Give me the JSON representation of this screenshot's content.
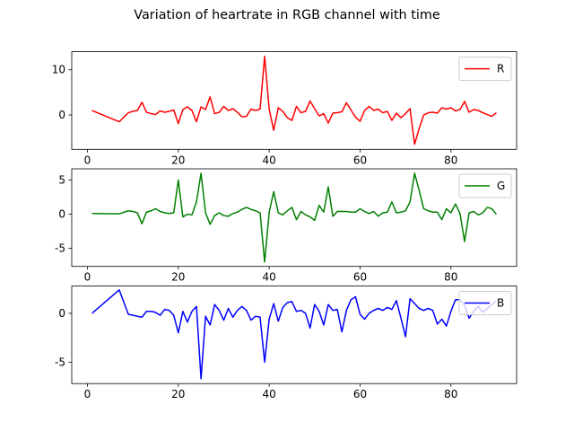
{
  "title": "Variation of heartrate in RGB channel with time",
  "chart_data": [
    {
      "type": "line",
      "legend": "upper right",
      "x": [
        1,
        7,
        9,
        10,
        11,
        12,
        13,
        14,
        15,
        16,
        17,
        18,
        19,
        20,
        21,
        22,
        23,
        24,
        25,
        26,
        27,
        28,
        29,
        30,
        31,
        32,
        33,
        34,
        35,
        36,
        37,
        38,
        39,
        40,
        41,
        42,
        43,
        44,
        45,
        46,
        47,
        48,
        49,
        50,
        51,
        52,
        53,
        54,
        55,
        56,
        57,
        58,
        59,
        60,
        61,
        62,
        63,
        64,
        65,
        66,
        67,
        68,
        69,
        70,
        71,
        72,
        73,
        74,
        75,
        76,
        77,
        78,
        79,
        80,
        81,
        82,
        83,
        84,
        85,
        86,
        87,
        88,
        89,
        90
      ],
      "xlim": [
        -3.45,
        94.45
      ],
      "xticks": [
        0,
        20,
        40,
        60,
        80
      ],
      "ylim": [
        -7.6,
        14.0
      ],
      "yticks": [
        0,
        10
      ],
      "series": [
        {
          "name": "R",
          "color": "#ff0000",
          "values": [
            1,
            -1.5,
            0.5,
            0.8,
            1,
            2.8,
            0.6,
            0.3,
            0.1,
            0.9,
            0.6,
            0.8,
            1.1,
            -1.9,
            1.2,
            1.8,
            1.0,
            -1.5,
            1.8,
            1.2,
            4.0,
            0.3,
            0.6,
            1.9,
            1.0,
            1.4,
            0.6,
            -0.4,
            -0.3,
            1.3,
            1.0,
            1.3,
            13.0,
            1.3,
            -3.4,
            1.6,
            0.8,
            -0.6,
            -1.2,
            1.9,
            0.5,
            0.8,
            3.1,
            1.4,
            -0.2,
            0.3,
            -1.8,
            0.4,
            0.5,
            0.7,
            2.7,
            1.1,
            -0.5,
            -1.4,
            1.0,
            1.9,
            1.0,
            1.3,
            0.5,
            0.8,
            -1.2,
            0.4,
            -0.6,
            0.3,
            1.4,
            -6.5,
            -3.0,
            0,
            0.5,
            0.6,
            0.4,
            1.6,
            1.3,
            1.6,
            0.9,
            1.2,
            3.0,
            0.6,
            1.2,
            1.0,
            0.5,
            0.1,
            -0.3,
            0.5
          ]
        }
      ]
    },
    {
      "type": "line",
      "legend": "upper right",
      "x": [
        1,
        7,
        9,
        10,
        11,
        12,
        13,
        14,
        15,
        16,
        17,
        18,
        19,
        20,
        21,
        22,
        23,
        24,
        25,
        26,
        27,
        28,
        29,
        30,
        31,
        32,
        33,
        34,
        35,
        36,
        37,
        38,
        39,
        40,
        41,
        42,
        43,
        44,
        45,
        46,
        47,
        48,
        49,
        50,
        51,
        52,
        53,
        54,
        55,
        56,
        57,
        58,
        59,
        60,
        61,
        62,
        63,
        64,
        65,
        66,
        67,
        68,
        69,
        70,
        71,
        72,
        73,
        74,
        75,
        76,
        77,
        78,
        79,
        80,
        81,
        82,
        83,
        84,
        85,
        86,
        87,
        88,
        89,
        90
      ],
      "xlim": [
        -3.45,
        94.45
      ],
      "xticks": [
        0,
        20,
        40,
        60,
        80
      ],
      "ylim": [
        -7.65,
        6.65
      ],
      "yticks": [
        -5,
        0,
        5
      ],
      "series": [
        {
          "name": "G",
          "color": "#008000",
          "values": [
            0.1,
            0.05,
            0.5,
            0.4,
            0.2,
            -1.4,
            0.3,
            0.5,
            0.8,
            0.4,
            0.2,
            0.1,
            0.2,
            5.0,
            -0.4,
            0,
            -0.1,
            1.8,
            6.0,
            0.2,
            -1.5,
            -0.2,
            0.2,
            -0.2,
            -0.3,
            0.1,
            0.3,
            0.7,
            1.0,
            0.7,
            0.5,
            0.2,
            -7.0,
            0.3,
            3.3,
            0.2,
            -0.1,
            0.5,
            1.0,
            -0.8,
            0.4,
            -0.1,
            -0.4,
            -0.9,
            1.3,
            0.3,
            4.0,
            -0.3,
            0.4,
            0.4,
            0.4,
            0.3,
            0.3,
            0.8,
            0.4,
            0.1,
            0.4,
            -0.3,
            0.2,
            0.3,
            1.8,
            0.2,
            0.3,
            0.5,
            1.8,
            6.0,
            3.5,
            0.8,
            0.5,
            0.3,
            0.3,
            -0.8,
            0.8,
            0.2,
            1.5,
            0.1,
            -4.0,
            0.2,
            0.4,
            -0.1,
            0.2,
            1.0,
            0.8,
            0.0
          ]
        }
      ]
    },
    {
      "type": "line",
      "legend": "upper right",
      "x": [
        1,
        7,
        9,
        10,
        11,
        12,
        13,
        14,
        15,
        16,
        17,
        18,
        19,
        20,
        21,
        22,
        23,
        24,
        25,
        26,
        27,
        28,
        29,
        30,
        31,
        32,
        33,
        34,
        35,
        36,
        37,
        38,
        39,
        40,
        41,
        42,
        43,
        44,
        45,
        46,
        47,
        48,
        49,
        50,
        51,
        52,
        53,
        54,
        55,
        56,
        57,
        58,
        59,
        60,
        61,
        62,
        63,
        64,
        65,
        66,
        67,
        68,
        69,
        70,
        71,
        72,
        73,
        74,
        75,
        76,
        77,
        78,
        79,
        80,
        81,
        82,
        83,
        84,
        85,
        86,
        87,
        88,
        89,
        90
      ],
      "xlim": [
        -3.45,
        94.45
      ],
      "xticks": [
        0,
        20,
        40,
        60,
        80
      ],
      "ylim": [
        -7.2,
        2.8
      ],
      "yticks": [
        -5,
        0
      ],
      "series": [
        {
          "name": "B",
          "color": "#0000ff",
          "values": [
            0,
            2.4,
            -0.1,
            -0.2,
            -0.3,
            -0.4,
            0.2,
            0.2,
            0.1,
            -0.2,
            0.4,
            0.3,
            -0.2,
            -2.0,
            0.2,
            -0.9,
            0.2,
            0.7,
            -6.7,
            -0.3,
            -1.2,
            0.9,
            0.3,
            -0.7,
            0.5,
            -0.4,
            0.3,
            0.7,
            0.3,
            -0.7,
            -0.3,
            -0.4,
            -5.0,
            -0.6,
            1.0,
            -0.8,
            0.6,
            1.1,
            1.2,
            0.2,
            0.3,
            0,
            -1.5,
            0.9,
            0.2,
            -1.2,
            0.9,
            0.3,
            0.4,
            -1.9,
            0.3,
            1.4,
            1.7,
            -0.1,
            -0.6,
            0,
            0.3,
            0.5,
            0.3,
            0.6,
            0.4,
            1.3,
            -0.5,
            -2.4,
            1.5,
            1.0,
            0.5,
            0.3,
            0.5,
            0.3,
            -1.1,
            -0.6,
            -1.3,
            0.2,
            1.4,
            1.4,
            0.8,
            -0.5,
            0.2,
            0.7,
            0.1,
            0.5,
            0.9,
            1.3
          ]
        }
      ]
    }
  ]
}
